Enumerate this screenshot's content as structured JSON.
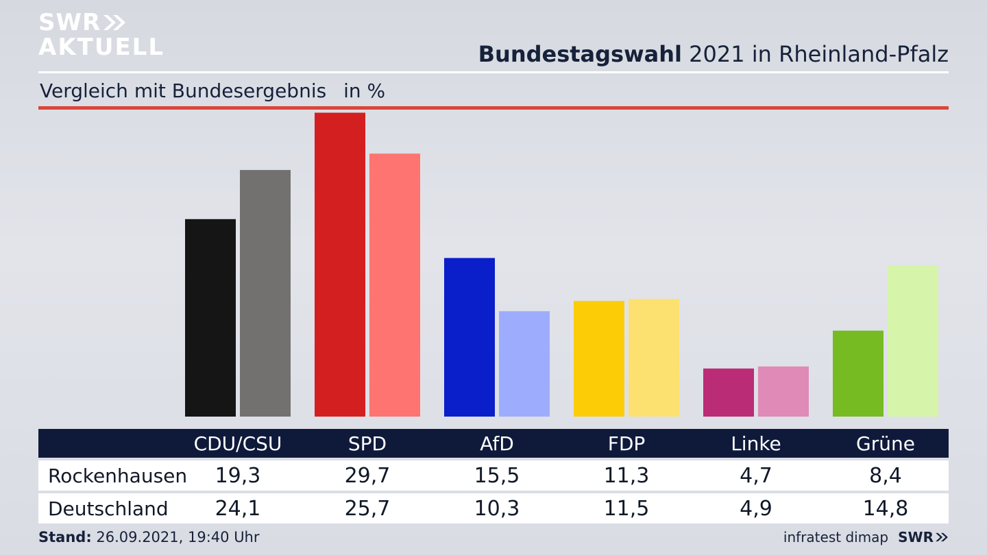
{
  "brand": {
    "line1": "SWR",
    "line2": "AKTUELL",
    "footer_logo": "SWR",
    "chevron_icon": "double-chevron-right-icon"
  },
  "header": {
    "title_bold": "Bundestagswahl",
    "title_rest": "2021 in Rheinland-Pfalz",
    "subtitle": "Vergleich mit Bundesergebnis",
    "unit": "in %"
  },
  "chart_data": {
    "type": "bar",
    "title": "Bundestagswahl 2021 in Rheinland-Pfalz",
    "subtitle": "Vergleich mit Bundesergebnis",
    "ylabel": "in %",
    "ylim": [
      0,
      30
    ],
    "grid": false,
    "categories": [
      "CDU/CSU",
      "SPD",
      "AfD",
      "FDP",
      "Linke",
      "Grüne"
    ],
    "series": [
      {
        "name": "Rockenhausen",
        "values": [
          19.3,
          29.7,
          15.5,
          11.3,
          4.7,
          8.4
        ],
        "display": [
          "19,3",
          "29,7",
          "15,5",
          "11,3",
          "4,7",
          "8,4"
        ],
        "colors": [
          "#151515",
          "#d41f20",
          "#0a1fc9",
          "#fccc07",
          "#bb2c77",
          "#76bb22"
        ]
      },
      {
        "name": "Deutschland",
        "values": [
          24.1,
          25.7,
          10.3,
          11.5,
          4.9,
          14.8
        ],
        "display": [
          "24,1",
          "25,7",
          "10,3",
          "11,5",
          "4,9",
          "14,8"
        ],
        "colors": [
          "#727170",
          "#fd7470",
          "#9eacfd",
          "#fde170",
          "#e08ab8",
          "#d6f4aa"
        ]
      }
    ]
  },
  "footer": {
    "stand_label": "Stand:",
    "stand_value": "26.09.2021, 19:40 Uhr",
    "source": "infratest dimap"
  }
}
